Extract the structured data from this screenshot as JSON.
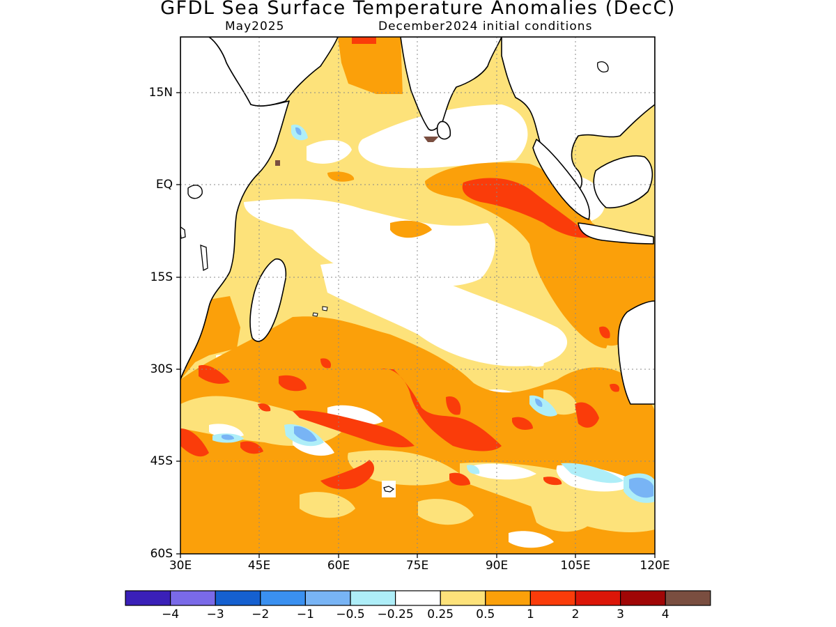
{
  "title": "GFDL Sea Surface Temperature Anomalies (DecC)",
  "valid_month": "May2025",
  "init_label": "December2024 initial conditions",
  "map": {
    "lon_range": [
      30,
      120
    ],
    "lat_range": [
      -60,
      24
    ],
    "x_ticks": [
      "30E",
      "45E",
      "60E",
      "75E",
      "90E",
      "105E",
      "120E"
    ],
    "y_ticks": [
      "15N",
      "EQ",
      "15S",
      "30S",
      "45S",
      "60S"
    ],
    "gridlines": true,
    "land_color": "#ffffff",
    "coastline_color": "#000000"
  },
  "colorbar": {
    "colors": [
      "#3a20b8",
      "#7a6ae8",
      "#1560d0",
      "#3a90f0",
      "#78b4f5",
      "#aeeef8",
      "#ffffff",
      "#fde27a",
      "#fba00a",
      "#fa3c0a",
      "#dc1608",
      "#a00606",
      "#7a4e40"
    ],
    "labels": [
      "−4",
      "−3",
      "−2",
      "−1",
      "−0.5",
      "−0.25",
      "0.25",
      "0.5",
      "1",
      "2",
      "3",
      "4"
    ]
  }
}
